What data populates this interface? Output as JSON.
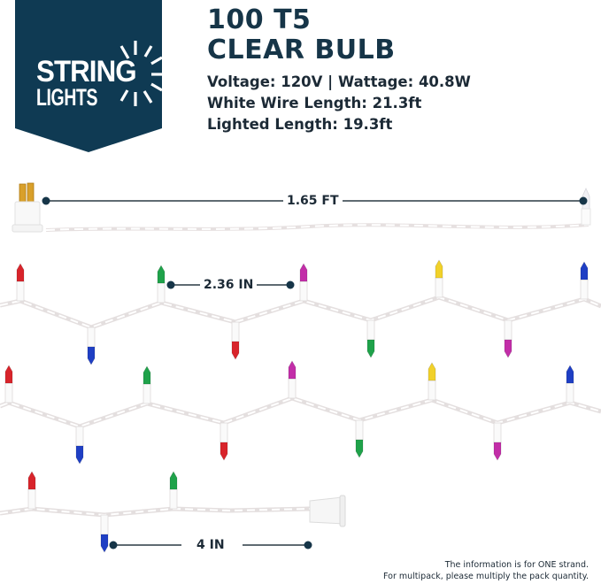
{
  "logo": {
    "line1": "STRING",
    "line2": "LIGHTS",
    "banner_color": "#0f3a53"
  },
  "product": {
    "title_line1": "100 T5",
    "title_line2": "CLEAR BULB",
    "specs": [
      "Voltage: 120V | Wattage: 40.8W",
      "White Wire Length: 21.3ft",
      "Lighted Length: 19.3ft"
    ]
  },
  "dimensions": {
    "lead_wire": "1.65 FT",
    "bulb_spacing": "2.36 IN",
    "end_wire": "4 IN",
    "marker_color": "#163548"
  },
  "strand": {
    "bulb_colors": {
      "red": "#d8242b",
      "green": "#1fa24a",
      "blue": "#1f3fc4",
      "magenta": "#c22ea8",
      "yellow": "#f1d12a",
      "clear": "#f4f4f6"
    },
    "row1": [
      "red",
      "blue",
      "green",
      "red",
      "magenta",
      "green",
      "yellow",
      "magenta",
      "blue"
    ],
    "row2": [
      "red",
      "blue",
      "green",
      "red",
      "magenta",
      "green",
      "yellow",
      "magenta",
      "blue"
    ],
    "row3": [
      "red",
      "blue",
      "green"
    ]
  },
  "footnote": {
    "line1": "The information is for ONE strand.",
    "line2": "For multipack, please multiply the pack quantity."
  }
}
